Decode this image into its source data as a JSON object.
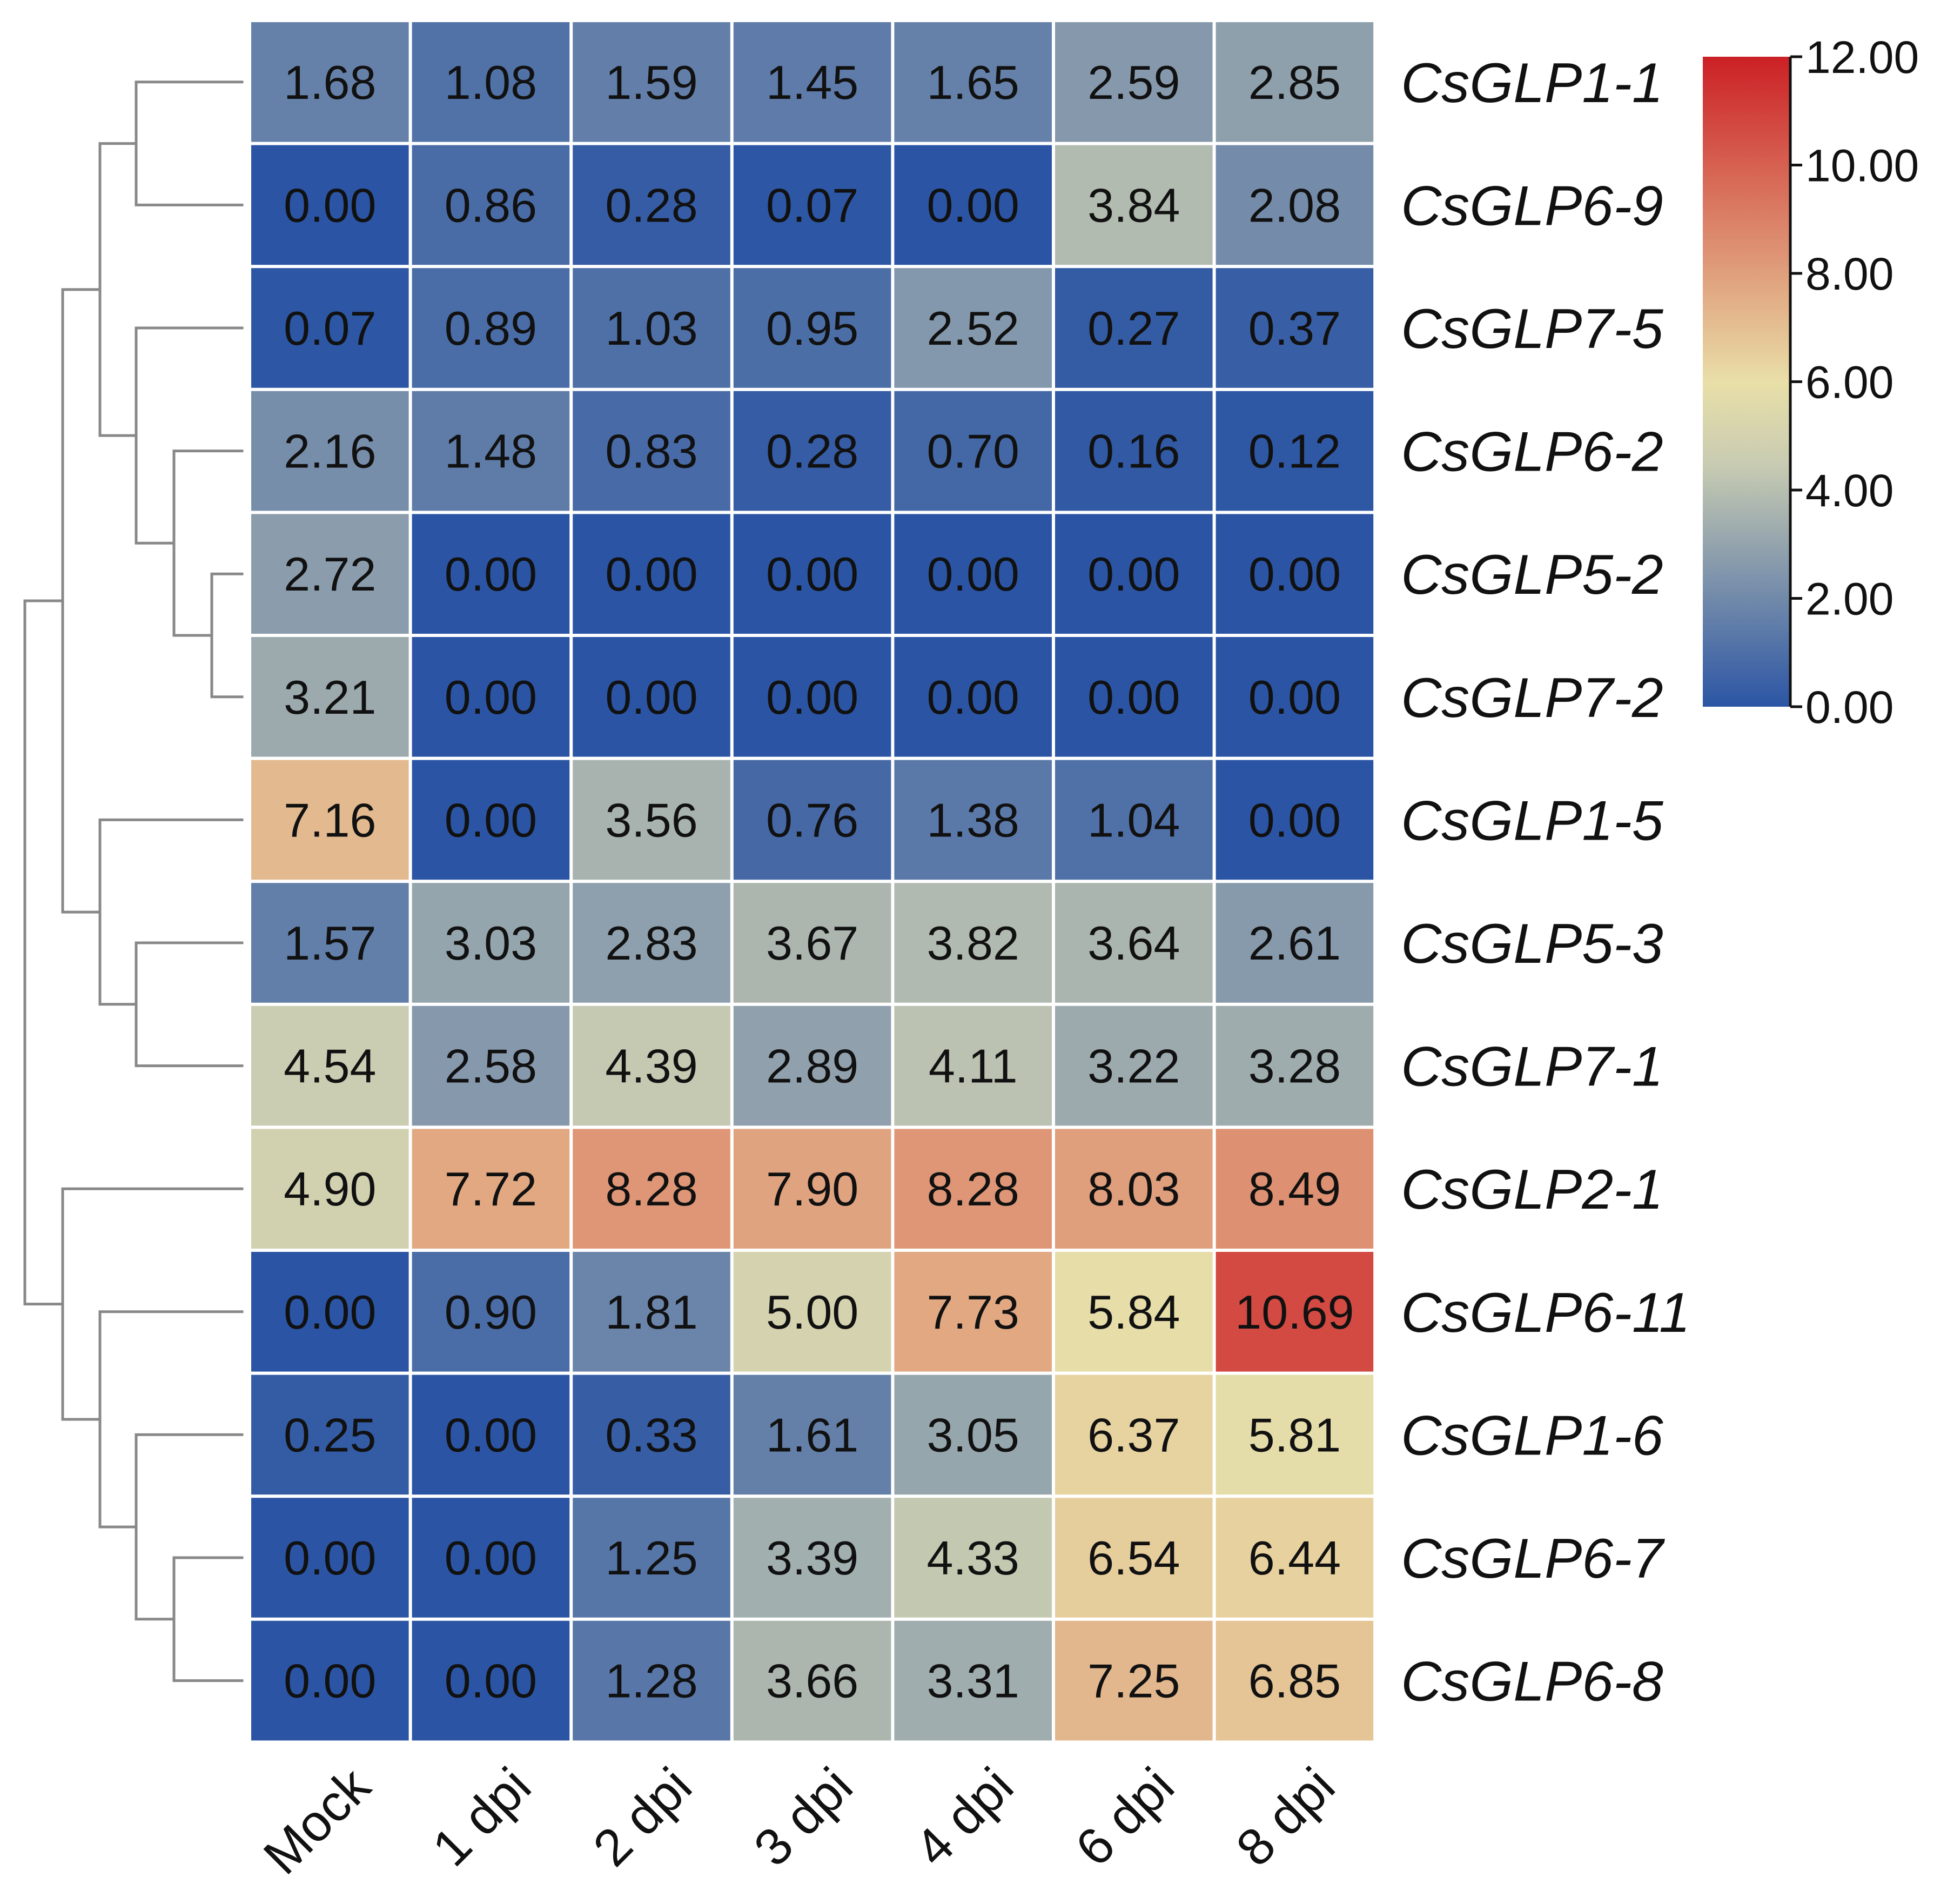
{
  "chart_data": {
    "type": "heatmap",
    "title": "",
    "xlabel": "",
    "ylabel": "",
    "columns": [
      "Mock",
      "1 dpi",
      "2 dpi",
      "3 dpi",
      "4 dpi",
      "6 dpi",
      "8 dpi"
    ],
    "rows": [
      "CsGLP1-1",
      "CsGLP6-9",
      "CsGLP7-5",
      "CsGLP6-2",
      "CsGLP5-2",
      "CsGLP7-2",
      "CsGLP1-5",
      "CsGLP5-3",
      "CsGLP7-1",
      "CsGLP2-1",
      "CsGLP6-11",
      "CsGLP1-6",
      "CsGLP6-7",
      "CsGLP6-8"
    ],
    "values": [
      [
        1.68,
        1.08,
        1.59,
        1.45,
        1.65,
        2.59,
        2.85
      ],
      [
        0.0,
        0.86,
        0.28,
        0.07,
        0.0,
        3.84,
        2.08
      ],
      [
        0.07,
        0.89,
        1.03,
        0.95,
        2.52,
        0.27,
        0.37
      ],
      [
        2.16,
        1.48,
        0.83,
        0.28,
        0.7,
        0.16,
        0.12
      ],
      [
        2.72,
        0.0,
        0.0,
        0.0,
        0.0,
        0.0,
        0.0
      ],
      [
        3.21,
        0.0,
        0.0,
        0.0,
        0.0,
        0.0,
        0.0
      ],
      [
        7.16,
        0.0,
        3.56,
        0.76,
        1.38,
        1.04,
        0.0
      ],
      [
        1.57,
        3.03,
        2.83,
        3.67,
        3.82,
        3.64,
        2.61
      ],
      [
        4.54,
        2.58,
        4.39,
        2.89,
        4.11,
        3.22,
        3.28
      ],
      [
        4.9,
        7.72,
        8.28,
        7.9,
        8.28,
        8.03,
        8.49
      ],
      [
        0.0,
        0.9,
        1.81,
        5.0,
        7.73,
        5.84,
        10.69
      ],
      [
        0.25,
        0.0,
        0.33,
        1.61,
        3.05,
        6.37,
        5.81
      ],
      [
        0.0,
        0.0,
        1.25,
        3.39,
        4.33,
        6.54,
        6.44
      ],
      [
        0.0,
        0.0,
        1.28,
        3.66,
        3.31,
        7.25,
        6.85
      ]
    ],
    "value_labels": [
      [
        "1.68",
        "1.08",
        "1.59",
        "1.45",
        "1.65",
        "2.59",
        "2.85"
      ],
      [
        "0.00",
        "0.86",
        "0.28",
        "0.07",
        "0.00",
        "3.84",
        "2.08"
      ],
      [
        "0.07",
        "0.89",
        "1.03",
        "0.95",
        "2.52",
        "0.27",
        "0.37"
      ],
      [
        "2.16",
        "1.48",
        "0.83",
        "0.28",
        "0.70",
        "0.16",
        "0.12"
      ],
      [
        "2.72",
        "0.00",
        "0.00",
        "0.00",
        "0.00",
        "0.00",
        "0.00"
      ],
      [
        "3.21",
        "0.00",
        "0.00",
        "0.00",
        "0.00",
        "0.00",
        "0.00"
      ],
      [
        "7.16",
        "0.00",
        "3.56",
        "0.76",
        "1.38",
        "1.04",
        "0.00"
      ],
      [
        "1.57",
        "3.03",
        "2.83",
        "3.67",
        "3.82",
        "3.64",
        "2.61"
      ],
      [
        "4.54",
        "2.58",
        "4.39",
        "2.89",
        "4.11",
        "3.22",
        "3.28"
      ],
      [
        "4.90",
        "7.72",
        "8.28",
        "7.90",
        "8.28",
        "8.03",
        "8.49"
      ],
      [
        "0.00",
        "0.90",
        "1.81",
        "5.00",
        "7.73",
        "5.84",
        "10.69"
      ],
      [
        "0.25",
        "0.00",
        "0.33",
        "1.61",
        "3.05",
        "6.37",
        "5.81"
      ],
      [
        "0.00",
        "0.00",
        "1.25",
        "3.39",
        "4.33",
        "6.54",
        "6.44"
      ],
      [
        "0.00",
        "0.00",
        "1.28",
        "3.66",
        "3.31",
        "7.25",
        "6.85"
      ]
    ],
    "colorbar": {
      "range": [
        0,
        12
      ],
      "ticks": [
        0,
        2,
        4,
        6,
        8,
        10,
        12
      ],
      "tick_labels": [
        "0.00",
        "2.00",
        "4.00",
        "6.00",
        "8.00",
        "10.00",
        "12.00"
      ],
      "colors": [
        "#2b55a4",
        "#c9ccb2",
        "#e9dfa8",
        "#cc2025"
      ],
      "stops": [
        0,
        4.5,
        6,
        12
      ],
      "placement": "top-right"
    },
    "row_dendrogram": "left",
    "dendrogram_color": "#888888",
    "grid_color": "#ffffff"
  }
}
